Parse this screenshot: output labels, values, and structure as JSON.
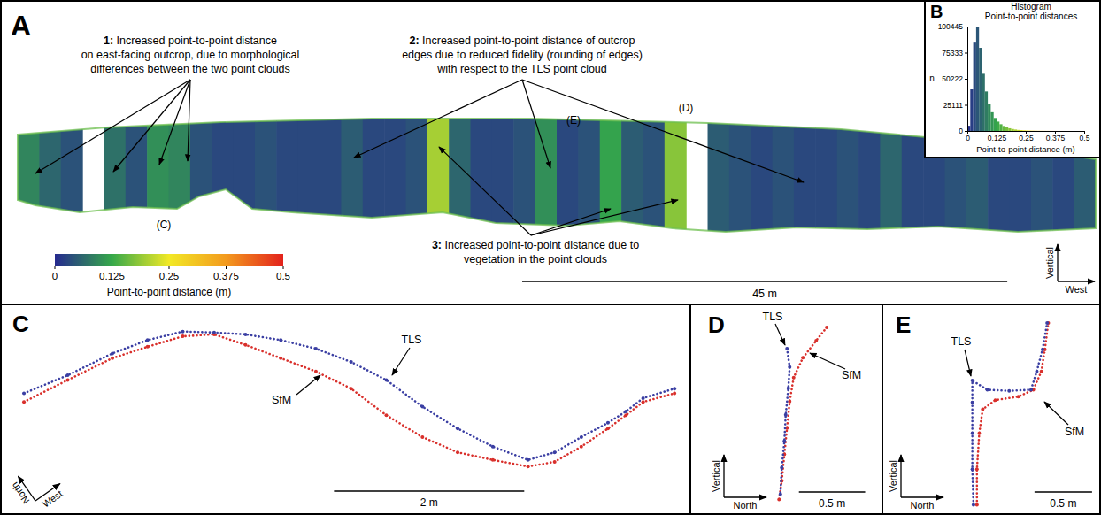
{
  "chart_data": [
    {
      "panel": "A",
      "type": "heatmap",
      "xlim": [
        0,
        100
      ],
      "tick_labels": false,
      "bins": [
        0,
        2,
        4,
        6,
        8,
        10,
        12,
        14,
        16,
        18,
        20,
        22,
        24,
        26,
        28,
        30,
        32,
        34,
        36,
        38,
        40,
        42,
        44,
        46,
        48,
        50,
        52,
        54,
        56,
        58,
        60,
        62,
        64,
        66,
        68,
        70,
        72,
        74,
        76,
        78,
        80,
        82,
        84,
        86,
        88,
        90,
        92,
        94,
        96,
        98,
        100
      ],
      "values": [
        0.09,
        0.06,
        0.04,
        null,
        0.07,
        0.04,
        0.1,
        0.09,
        0.04,
        0.03,
        0.03,
        0.04,
        0.03,
        0.03,
        0.03,
        0.05,
        0.03,
        0.03,
        0.04,
        0.2,
        0.06,
        0.03,
        0.03,
        0.04,
        0.1,
        0.03,
        0.04,
        0.12,
        0.05,
        0.04,
        0.18,
        null,
        0.05,
        0.04,
        0.03,
        0.04,
        0.03,
        0.03,
        0.04,
        0.03,
        0.06,
        0.03,
        0.03,
        0.04,
        0.05,
        0.03,
        0.03,
        0.04,
        0.03,
        0.05
      ],
      "colorbar": {
        "range": [
          0,
          0.5
        ],
        "ticks": [
          0,
          0.125,
          0.25,
          0.375,
          0.5
        ],
        "colors": [
          "#262a8f",
          "#35a84a",
          "#f2e926",
          "#f39a1e",
          "#e3221c"
        ],
        "label": "Point-to-point distance (m)"
      },
      "annotations": [
        {
          "lines": [
            "1: Increased point-to-point distance",
            "on east-facing outcrop, due to morphological",
            "differences between the two point clouds"
          ]
        },
        {
          "lines": [
            "2: Increased point-to-point distance of outcrop",
            "edges due to reduced fidelity (rounding of edges)",
            "with respect to the TLS point cloud"
          ]
        },
        {
          "lines": [
            "3: Increased point-to-point distance due to",
            "vegetation in the point clouds"
          ]
        }
      ],
      "callouts": [
        "(C)",
        "(D)",
        "(E)"
      ],
      "scale_bar": {
        "value": 45,
        "label": "45 m"
      },
      "compass": {
        "up": "Vertical",
        "right": "West"
      }
    },
    {
      "panel": "B",
      "type": "histogram",
      "title": [
        "Histogram",
        "Point-to-point distances"
      ],
      "bins": [
        0,
        0.0125,
        0.025,
        0.0375,
        0.05,
        0.0625,
        0.075,
        0.0875,
        0.1,
        0.1125,
        0.125,
        0.1375,
        0.15,
        0.1625,
        0.175,
        0.1875,
        0.2,
        0.2125,
        0.225,
        0.2375,
        0.25,
        0.2625,
        0.275,
        0.2875,
        0.3,
        0.3125,
        0.325,
        0.3375,
        0.35,
        0.3625,
        0.375,
        0.3875,
        0.4,
        0.4125,
        0.425,
        0.4375,
        0.45,
        0.4625,
        0.475,
        0.4875,
        0.5
      ],
      "values": [
        5000,
        40000,
        85000,
        100445,
        80000,
        55000,
        38000,
        26000,
        18000,
        12500,
        9000,
        6500,
        4800,
        3500,
        2600,
        1900,
        1400,
        1000,
        800,
        600,
        450,
        350,
        270,
        200,
        150,
        120,
        90,
        70,
        55,
        40,
        30,
        25,
        20,
        15,
        12,
        10,
        8,
        6,
        5,
        4
      ],
      "xlim": [
        0,
        0.5
      ],
      "ylim": [
        0,
        100445
      ],
      "xticks": [
        0,
        0.125,
        0.25,
        0.375,
        0.5
      ],
      "yticks": [
        0,
        25111,
        50222,
        75333,
        100445
      ],
      "x_label": "Point-to-point distance (m)",
      "y_label": "n"
    },
    {
      "panel": "C",
      "type": "scatter",
      "xlim": [
        0,
        7.1
      ],
      "ylim": [
        0,
        1.67
      ],
      "tick_labels": false,
      "series": [
        {
          "name": "TLS",
          "color": "#3b3fa3",
          "marker": "circle",
          "line_style": "dotted",
          "x": [
            0.14,
            0.6,
            1.07,
            1.44,
            1.81,
            2.14,
            2.47,
            2.84,
            3.21,
            3.58,
            3.95,
            4.33,
            4.7,
            5.07,
            5.44,
            5.72,
            6.0,
            6.28,
            6.47,
            6.65,
            6.98
          ],
          "values": [
            0.93,
            1.12,
            1.35,
            1.49,
            1.58,
            1.57,
            1.55,
            1.49,
            1.4,
            1.26,
            1.07,
            0.79,
            0.56,
            0.37,
            0.23,
            0.31,
            0.47,
            0.62,
            0.74,
            0.88,
            0.98
          ]
        },
        {
          "name": "SfM",
          "color": "#d9302c",
          "marker": "circle",
          "line_style": "dotted",
          "x": [
            0.14,
            0.6,
            1.07,
            1.44,
            1.81,
            2.14,
            2.47,
            2.84,
            3.21,
            3.58,
            3.95,
            4.33,
            4.7,
            5.07,
            5.44,
            5.72,
            6.0,
            6.28,
            6.47,
            6.65,
            6.98
          ],
          "values": [
            0.84,
            1.07,
            1.3,
            1.42,
            1.53,
            1.55,
            1.44,
            1.3,
            1.16,
            0.98,
            0.7,
            0.47,
            0.31,
            0.23,
            0.16,
            0.21,
            0.37,
            0.56,
            0.7,
            0.84,
            0.93
          ]
        }
      ],
      "scale_bar": {
        "value": 2,
        "label": "2 m"
      },
      "compass": {
        "up": "North",
        "right": "West"
      }
    },
    {
      "panel": "D",
      "type": "scatter",
      "xlim": [
        0,
        1.27
      ],
      "ylim": [
        0,
        1.53
      ],
      "tick_labels": false,
      "series": [
        {
          "name": "TLS",
          "color": "#3b3fa3",
          "marker": "circle",
          "line_style": "dotted",
          "x": [
            0.63,
            0.65,
            0.64,
            0.62,
            0.61,
            0.59,
            0.58
          ],
          "values": [
            1.25,
            1.11,
            0.95,
            0.75,
            0.55,
            0.35,
            0.15
          ]
        },
        {
          "name": "SfM",
          "color": "#d9302c",
          "marker": "circle",
          "line_style": "dotted",
          "x": [
            0.93,
            0.85,
            0.75,
            0.68,
            0.65,
            0.63,
            0.61,
            0.59,
            0.57
          ],
          "values": [
            1.41,
            1.31,
            1.18,
            1.03,
            0.85,
            0.65,
            0.45,
            0.25,
            0.11
          ]
        }
      ],
      "scale_bar": {
        "value": 0.5,
        "label": "0.5 m"
      },
      "compass": {
        "up": "Vertical",
        "right": "North"
      }
    },
    {
      "panel": "E",
      "type": "scatter",
      "xlim": [
        0,
        1.83
      ],
      "ylim": [
        0,
        1.77
      ],
      "tick_labels": false,
      "series": [
        {
          "name": "TLS",
          "color": "#3b3fa3",
          "marker": "circle",
          "line_style": "dotted",
          "x": [
            0.73,
            0.72,
            0.72,
            0.72,
            0.72,
            0.85,
            1.04,
            1.23,
            1.28,
            1.33,
            1.37
          ],
          "values": [
            0.09,
            0.4,
            0.71,
            0.98,
            1.17,
            1.09,
            1.08,
            1.09,
            1.25,
            1.44,
            1.67
          ]
        },
        {
          "name": "SfM",
          "color": "#d9302c",
          "marker": "circle",
          "line_style": "dotted",
          "x": [
            0.76,
            0.76,
            0.78,
            0.81,
            0.92,
            1.12,
            1.25,
            1.32,
            1.35,
            1.38
          ],
          "values": [
            0.09,
            0.4,
            0.71,
            0.92,
            1.0,
            1.03,
            1.09,
            1.25,
            1.44,
            1.67
          ]
        }
      ],
      "scale_bar": {
        "value": 0.5,
        "label": "0.5 m"
      },
      "compass": {
        "up": "Vertical",
        "right": "North"
      }
    }
  ]
}
